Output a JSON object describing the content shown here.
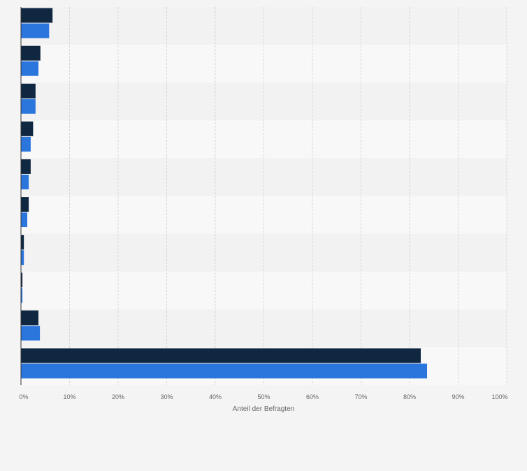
{
  "chart_data": {
    "type": "bar",
    "orientation": "horizontal",
    "xlabel": "Anteil der Befragten",
    "xlim": [
      0,
      100
    ],
    "xticks": [
      "0%",
      "10%",
      "20%",
      "30%",
      "40%",
      "50%",
      "60%",
      "70%",
      "80%",
      "90%",
      "100%"
    ],
    "grid": true,
    "categories": [
      "",
      "",
      "",
      "",
      "",
      "",
      "",
      "",
      "",
      ""
    ],
    "series": [
      {
        "color": "#0f2740",
        "values": [
          6.5,
          4.0,
          3.0,
          2.5,
          2.0,
          1.6,
          0.6,
          0.3,
          3.6,
          82.3
        ]
      },
      {
        "color": "#2a76dd",
        "values": [
          5.8,
          3.6,
          3.0,
          2.0,
          1.6,
          1.3,
          0.6,
          0.3,
          3.9,
          83.6
        ]
      }
    ]
  }
}
